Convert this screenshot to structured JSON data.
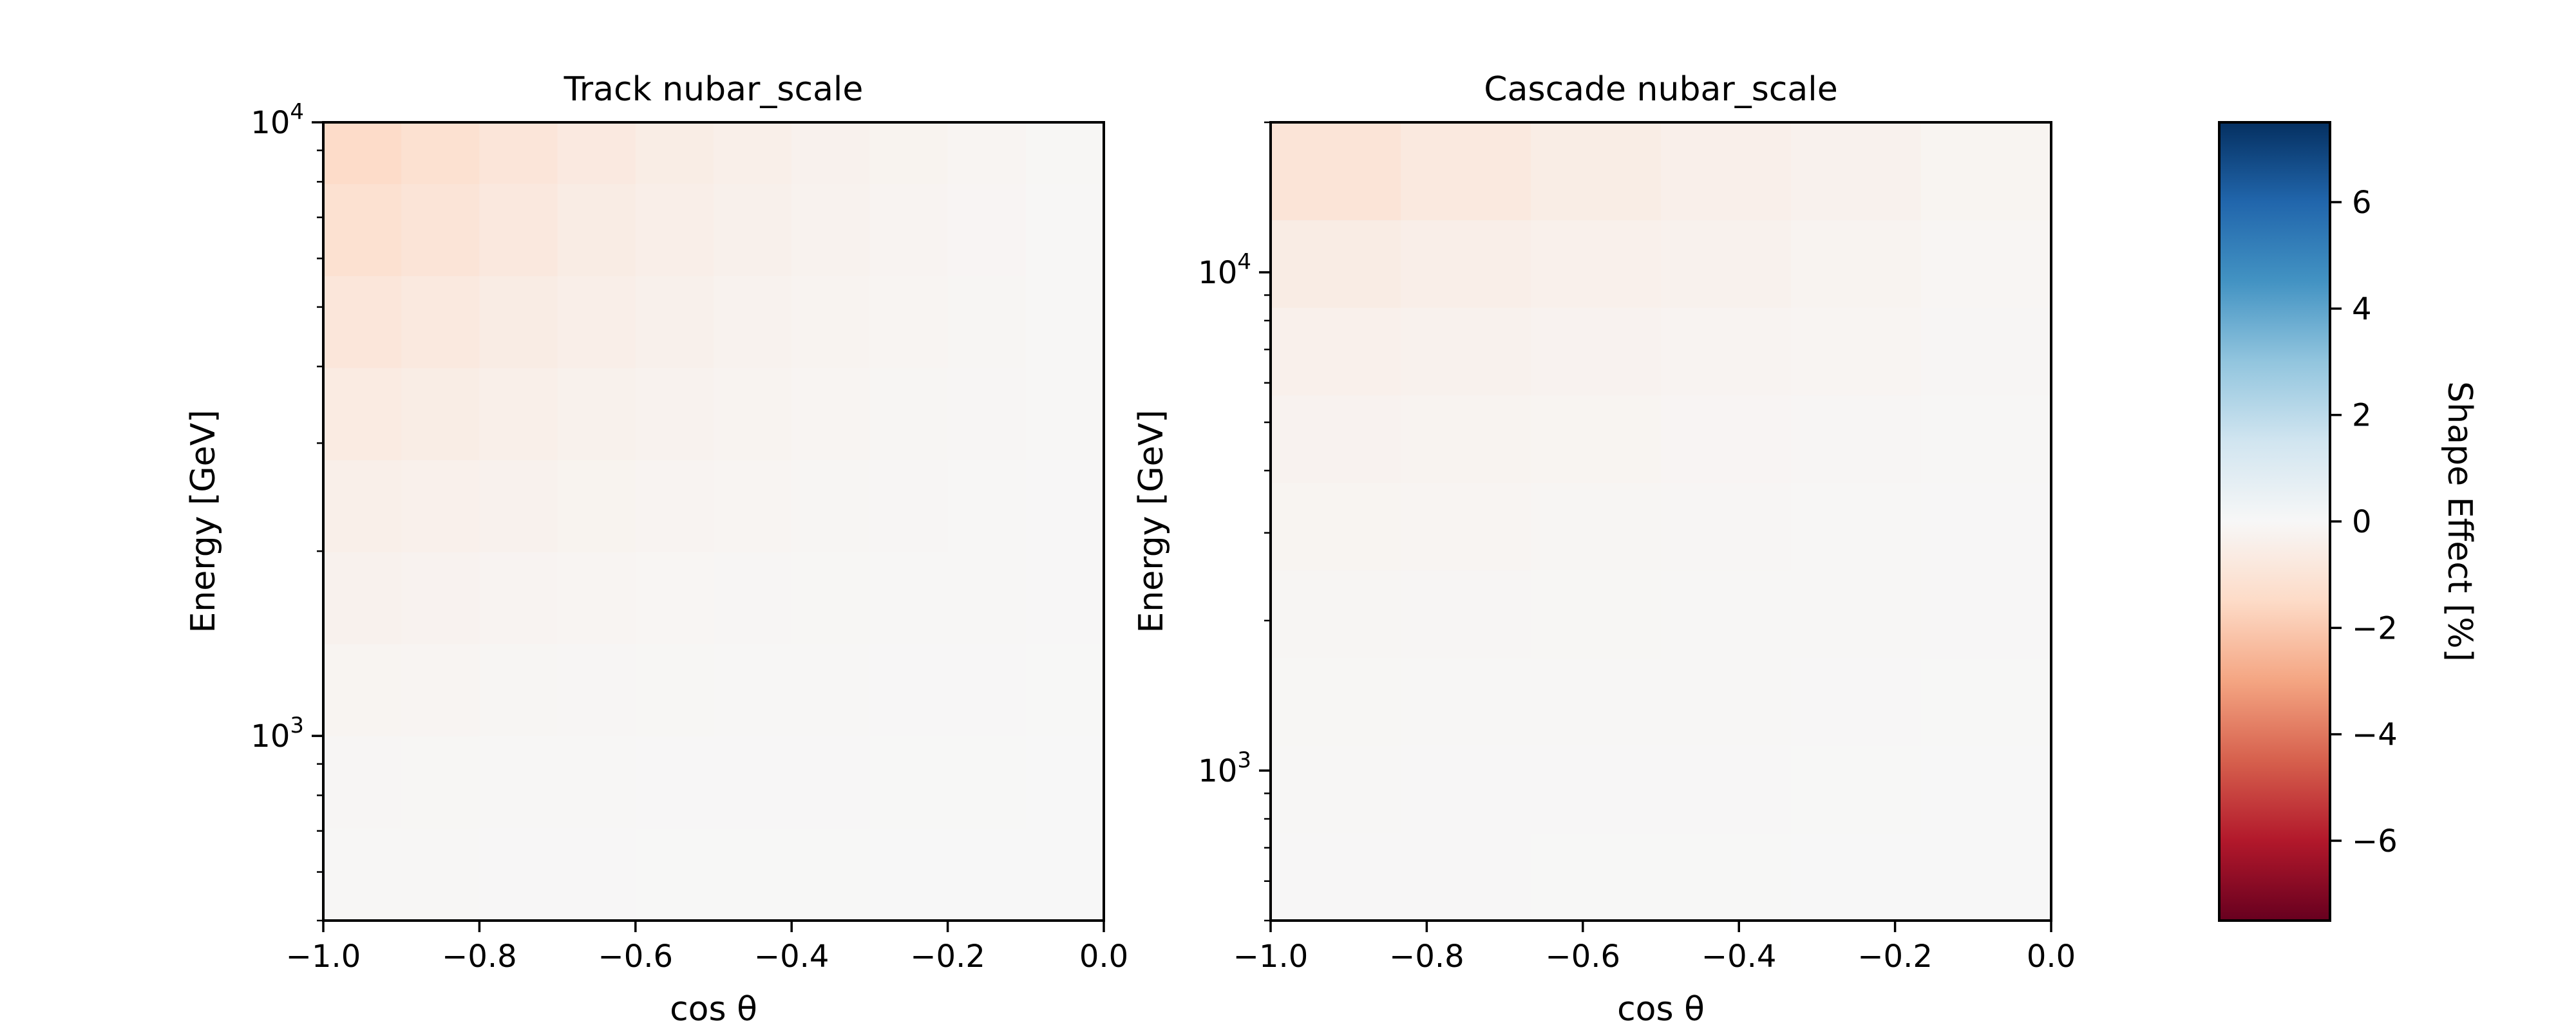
{
  "chart_data": [
    {
      "type": "heatmap",
      "title": "Track nubar_scale",
      "xlabel": "cos θ",
      "ylabel": "Energy [GeV]",
      "xlim": [
        -1.0,
        0.0
      ],
      "ylim": [
        500,
        10000
      ],
      "yscale": "log",
      "xticks": [
        "−1.0",
        "−0.8",
        "−0.6",
        "−0.4",
        "−0.2",
        "0.0"
      ],
      "yticks_major": [
        {
          "base": "10",
          "exp": "3",
          "value": 1000
        },
        {
          "base": "10",
          "exp": "4",
          "value": 10000
        }
      ],
      "x_edges": [
        -1.0,
        -0.9,
        -0.8,
        -0.7,
        -0.6,
        -0.5,
        -0.4,
        -0.3,
        -0.2,
        -0.1,
        0.0
      ],
      "y_edges": [
        500,
        708,
        1000,
        1413,
        1995,
        2818,
        3981,
        5623,
        7943,
        10000
      ],
      "values": [
        [
          -0.05,
          -0.05,
          -0.03,
          -0.03,
          -0.02,
          -0.02,
          -0.02,
          -0.01,
          -0.01,
          -0.01
        ],
        [
          -0.1,
          -0.08,
          -0.06,
          -0.05,
          -0.04,
          -0.03,
          -0.03,
          -0.02,
          -0.02,
          -0.01
        ],
        [
          -0.18,
          -0.15,
          -0.12,
          -0.1,
          -0.08,
          -0.06,
          -0.05,
          -0.04,
          -0.03,
          -0.02
        ],
        [
          -0.3,
          -0.25,
          -0.2,
          -0.16,
          -0.13,
          -0.1,
          -0.08,
          -0.06,
          -0.05,
          -0.03
        ],
        [
          -0.45,
          -0.38,
          -0.3,
          -0.24,
          -0.19,
          -0.15,
          -0.12,
          -0.09,
          -0.07,
          -0.04
        ],
        [
          -0.65,
          -0.55,
          -0.43,
          -0.34,
          -0.27,
          -0.21,
          -0.16,
          -0.12,
          -0.09,
          -0.05
        ],
        [
          -0.9,
          -0.75,
          -0.58,
          -0.46,
          -0.36,
          -0.28,
          -0.21,
          -0.16,
          -0.11,
          -0.06
        ],
        [
          -1.2,
          -1.0,
          -0.78,
          -0.6,
          -0.47,
          -0.36,
          -0.27,
          -0.2,
          -0.14,
          -0.07
        ],
        [
          -1.45,
          -1.2,
          -0.95,
          -0.73,
          -0.56,
          -0.43,
          -0.32,
          -0.24,
          -0.16,
          -0.08
        ]
      ]
    },
    {
      "type": "heatmap",
      "title": "Cascade nubar_scale",
      "xlabel": "cos θ",
      "ylabel": "Energy [GeV]",
      "xlim": [
        -1.0,
        0.0
      ],
      "ylim": [
        500,
        20000
      ],
      "yscale": "log",
      "xticks": [
        "−1.0",
        "−0.8",
        "−0.6",
        "−0.4",
        "−0.2",
        "0.0"
      ],
      "yticks_major": [
        {
          "base": "10",
          "exp": "3",
          "value": 1000
        },
        {
          "base": "10",
          "exp": "4",
          "value": 10000
        }
      ],
      "x_edges": [
        -1.0,
        -0.8333,
        -0.6667,
        -0.5,
        -0.3333,
        -0.1667,
        0.0
      ],
      "y_edges": [
        500,
        750,
        1124,
        1685,
        2525,
        3784,
        5671,
        8500,
        12740,
        20000
      ],
      "values": [
        [
          -0.03,
          -0.03,
          -0.02,
          -0.02,
          -0.01,
          -0.01
        ],
        [
          -0.05,
          -0.04,
          -0.03,
          -0.03,
          -0.02,
          -0.01
        ],
        [
          -0.08,
          -0.07,
          -0.06,
          -0.05,
          -0.03,
          -0.02
        ],
        [
          -0.12,
          -0.1,
          -0.08,
          -0.07,
          -0.05,
          -0.03
        ],
        [
          -0.18,
          -0.15,
          -0.12,
          -0.1,
          -0.07,
          -0.04
        ],
        [
          -0.26,
          -0.22,
          -0.18,
          -0.14,
          -0.1,
          -0.06
        ],
        [
          -0.38,
          -0.32,
          -0.26,
          -0.2,
          -0.15,
          -0.09
        ],
        [
          -0.6,
          -0.48,
          -0.38,
          -0.3,
          -0.22,
          -0.13
        ],
        [
          -1.0,
          -0.75,
          -0.55,
          -0.42,
          -0.3,
          -0.18
        ]
      ]
    }
  ],
  "colorbar": {
    "label": "Shape Effect [%]",
    "colormap": "RdBu",
    "vmin": -7.5,
    "vmax": 7.5,
    "ticks": [
      {
        "label": "6",
        "value": 6
      },
      {
        "label": "4",
        "value": 4
      },
      {
        "label": "2",
        "value": 2
      },
      {
        "label": "0",
        "value": 0
      },
      {
        "label": "−2",
        "value": -2
      },
      {
        "label": "−4",
        "value": -4
      },
      {
        "label": "−6",
        "value": -6
      }
    ],
    "colors": [
      "#67001f",
      "#b2182b",
      "#d6604d",
      "#f4a582",
      "#fddbc7",
      "#f7f7f7",
      "#d1e5f0",
      "#92c5de",
      "#4393c3",
      "#2166ac",
      "#053061"
    ]
  }
}
